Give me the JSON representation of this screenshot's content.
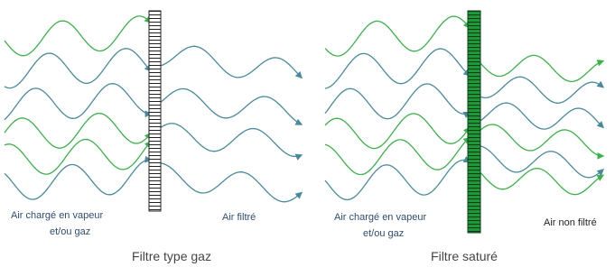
{
  "panels": [
    {
      "input_label": [
        "Air chargé en vapeur",
        "et/ou gaz"
      ],
      "output_label": "Air filtré",
      "caption": "Filtre type gaz"
    },
    {
      "input_label": [
        "Air chargé en vapeur",
        "et/ou gaz"
      ],
      "output_label": "Air non filtré",
      "caption": "Filtre saturé"
    }
  ]
}
